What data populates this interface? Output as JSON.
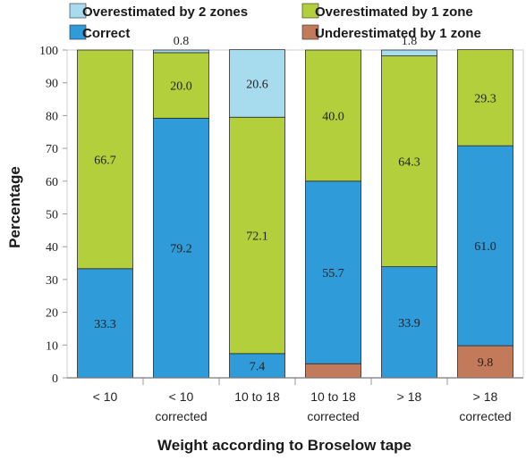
{
  "chart_data": {
    "type": "bar",
    "stacked": true,
    "xlabel": "Weight according to Broselow tape",
    "ylabel": "Percentage",
    "ylim": [
      0,
      100
    ],
    "yticks": [
      0,
      10,
      20,
      30,
      40,
      50,
      60,
      70,
      80,
      90,
      100
    ],
    "categories": [
      [
        "< 10"
      ],
      [
        "< 10",
        "corrected"
      ],
      [
        "10 to 18"
      ],
      [
        "10 to 18",
        "corrected"
      ],
      [
        "> 18"
      ],
      [
        "> 18",
        "corrected"
      ]
    ],
    "legend_position": "top",
    "series": [
      {
        "name": "Underestimated by 1 zone",
        "color": "#c27a5a",
        "values": [
          0,
          0,
          0,
          4.3,
          0,
          9.8
        ],
        "labels": [
          "",
          "",
          "",
          "4.3",
          "",
          "9.8"
        ]
      },
      {
        "name": "Correct",
        "color": "#2f9bd8",
        "values": [
          33.3,
          79.2,
          7.4,
          55.7,
          33.9,
          61.0
        ],
        "labels": [
          "33.3",
          "79.2",
          "7.4",
          "55.7",
          "33.9",
          "61.0"
        ]
      },
      {
        "name": "Overestimated by 1 zone",
        "color": "#b3cf3c",
        "values": [
          66.7,
          20.0,
          72.1,
          40.0,
          64.3,
          29.3
        ],
        "labels": [
          "66.7",
          "20.0",
          "72.1",
          "40.0",
          "64.3",
          "29.3"
        ]
      },
      {
        "name": "Overestimated by 2 zones",
        "color": "#a7dcef",
        "values": [
          0,
          0.8,
          20.6,
          0,
          1.8,
          0
        ],
        "labels": [
          "",
          "0.8",
          "20.6",
          "",
          "1.8",
          ""
        ]
      }
    ]
  }
}
